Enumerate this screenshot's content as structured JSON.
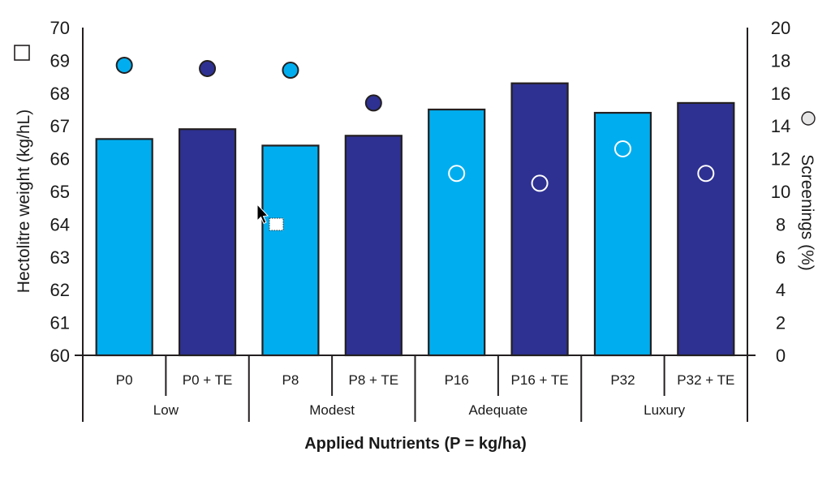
{
  "chart_data": {
    "type": "bar",
    "title": "",
    "xlabel": "Applied Nutrients (P = kg/ha)",
    "ylabel": "Hectolitre weight (kg/hL)",
    "ylabel_legend_symbol": "□",
    "y2label": "Screenings (%)",
    "y2label_legend_symbol": "○",
    "ylim": [
      60,
      70
    ],
    "y2lim": [
      0,
      20
    ],
    "yticks": [
      "60",
      "61",
      "62",
      "63",
      "64",
      "65",
      "66",
      "67",
      "68",
      "69",
      "70"
    ],
    "y2ticks": [
      "0",
      "2",
      "4",
      "6",
      "8",
      "10",
      "12",
      "14",
      "16",
      "18",
      "20"
    ],
    "categories": [
      "P0",
      "P0 + TE",
      "P8",
      "P8 + TE",
      "P16",
      "P16 + TE",
      "P32",
      "P32 + TE"
    ],
    "groups": [
      {
        "label": "Low",
        "members": [
          "P0",
          "P0 + TE"
        ]
      },
      {
        "label": "Modest",
        "members": [
          "P8",
          "P8 + TE"
        ]
      },
      {
        "label": "Adequate",
        "members": [
          "P16",
          "P16 + TE"
        ]
      },
      {
        "label": "Luxury",
        "members": [
          "P32",
          "P32 + TE"
        ]
      }
    ],
    "series": [
      {
        "name": "Hectolitre weight (kg/hL)",
        "type": "bar",
        "axis": "left",
        "values": [
          66.6,
          66.9,
          66.4,
          66.7,
          67.5,
          68.3,
          67.4,
          67.7
        ]
      },
      {
        "name": "Screenings (%)",
        "type": "scatter",
        "axis": "right",
        "values": [
          17.7,
          17.5,
          17.4,
          15.4,
          11.1,
          10.5,
          12.6,
          11.1
        ]
      }
    ],
    "colors": {
      "without_te": "#00AEEF",
      "with_te": "#2E3192",
      "outline": "#231F20",
      "hollow_marker": "#FFFFFF"
    },
    "grid": false,
    "legend": "inline-axis-labels"
  },
  "overlay": {
    "cursor": "mouse-pointer-with-drag-box"
  }
}
